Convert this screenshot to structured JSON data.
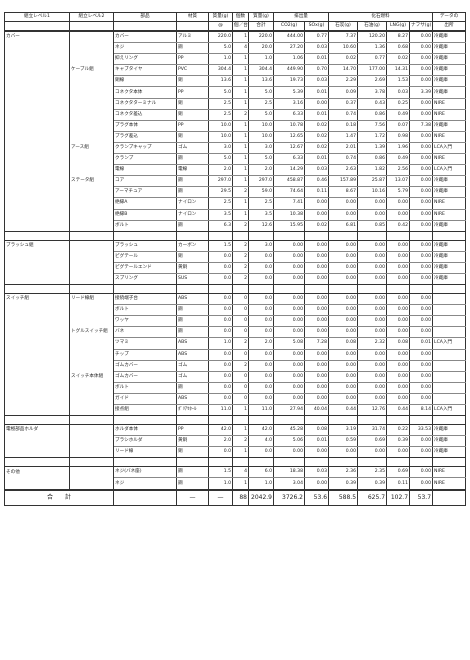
{
  "headers": {
    "level1": "組立レベル1",
    "level2": "組立レベル2",
    "part": "部品",
    "material": "材質",
    "mass_unit": "質量(g)",
    "count": "個数",
    "mass_total": "質量(g)",
    "emissions": "排出量",
    "fossil": "化石燃料",
    "source": "データの",
    "mass_unit_sub": "@",
    "count_sub": "個／台",
    "mass_total_sub": "合計",
    "co2": "CO2(g)",
    "sox": "SOx(g)",
    "coal": "石炭(g)",
    "oil": "石油(g)",
    "lng": "LNG(g)",
    "naphtha": "ナフサ(g)",
    "source_sub": "出所"
  },
  "rows": [
    {
      "l1": "カバー",
      "l2": "",
      "part": "カバー",
      "mat": "アルミ",
      "m": "220.0",
      "n": "1",
      "t": "220.0",
      "co2": "444.00",
      "sox": "0.77",
      "coal": "7.37",
      "oil": "120.20",
      "lng": "8.27",
      "nap": "0.00",
      "src": "冷蔵庫"
    },
    {
      "l1": "",
      "l2": "",
      "part": "ネジ",
      "mat": "鋼",
      "m": "5.0",
      "n": "4",
      "t": "20.0",
      "co2": "27.20",
      "sox": "0.03",
      "coal": "10.60",
      "oil": "1.36",
      "lng": "0.68",
      "nap": "0.00",
      "src": "冷蔵庫"
    },
    {
      "l1": "",
      "l2": "",
      "part": "抑えリング",
      "mat": "PP",
      "m": "1.0",
      "n": "1",
      "t": "1.0",
      "co2": "1.06",
      "sox": "0.01",
      "coal": "0.02",
      "oil": "0.77",
      "lng": "0.02",
      "nap": "0.00",
      "src": "冷蔵庫"
    },
    {
      "l1": "",
      "l2": "ケーブル組",
      "part": "キャブタイヤ",
      "mat": "PVC",
      "m": "304.4",
      "n": "1",
      "t": "304.4",
      "co2": "449.90",
      "sox": "0.70",
      "coal": "14.70",
      "oil": "177.00",
      "lng": "14.31",
      "nap": "0.00",
      "src": "冷蔵庫"
    },
    {
      "l1": "",
      "l2": "",
      "part": "銅線",
      "mat": "銅",
      "m": "13.6",
      "n": "1",
      "t": "13.6",
      "co2": "19.73",
      "sox": "0.03",
      "coal": "2.29",
      "oil": "2.69",
      "lng": "1.53",
      "nap": "0.00",
      "src": "冷蔵庫"
    },
    {
      "l1": "",
      "l2": "",
      "part": "コネクタ本体",
      "mat": "PP",
      "m": "5.0",
      "n": "1",
      "t": "5.0",
      "co2": "5.39",
      "sox": "0.01",
      "coal": "0.09",
      "oil": "3.78",
      "lng": "0.03",
      "nap": "3.39",
      "src": "冷蔵庫"
    },
    {
      "l1": "",
      "l2": "",
      "part": "コネクタターミナル",
      "mat": "銅",
      "m": "2.5",
      "n": "1",
      "t": "2.5",
      "co2": "3.16",
      "sox": "0.00",
      "coal": "0.37",
      "oil": "0.43",
      "lng": "0.25",
      "nap": "0.00",
      "src": "NIRE"
    },
    {
      "l1": "",
      "l2": "",
      "part": "コネクタ差込",
      "mat": "銅",
      "m": "2.5",
      "n": "2",
      "t": "5.0",
      "co2": "6.33",
      "sox": "0.01",
      "coal": "0.74",
      "oil": "0.86",
      "lng": "0.49",
      "nap": "0.00",
      "src": "NIRE"
    },
    {
      "l1": "",
      "l2": "",
      "part": "プラグ本体",
      "mat": "PP",
      "m": "10.0",
      "n": "1",
      "t": "10.0",
      "co2": "10.78",
      "sox": "0.02",
      "coal": "0.18",
      "oil": "7.56",
      "lng": "0.07",
      "nap": "7.38",
      "src": "冷蔵庫"
    },
    {
      "l1": "",
      "l2": "",
      "part": "プラグ差込",
      "mat": "銅",
      "m": "10.0",
      "n": "1",
      "t": "10.0",
      "co2": "12.65",
      "sox": "0.02",
      "coal": "1.47",
      "oil": "1.72",
      "lng": "0.98",
      "nap": "0.00",
      "src": "NIRE"
    },
    {
      "l1": "",
      "l2": "アース組",
      "part": "クランプキャップ",
      "mat": "ゴム",
      "m": "3.0",
      "n": "1",
      "t": "3.0",
      "co2": "12.67",
      "sox": "0.02",
      "coal": "2.01",
      "oil": "1.39",
      "lng": "1.96",
      "nap": "0.00",
      "src": "LCA入門"
    },
    {
      "l1": "",
      "l2": "",
      "part": "クランプ",
      "mat": "鋼",
      "m": "5.0",
      "n": "1",
      "t": "5.0",
      "co2": "6.33",
      "sox": "0.01",
      "coal": "0.74",
      "oil": "0.86",
      "lng": "0.49",
      "nap": "0.00",
      "src": "NIRE"
    },
    {
      "l1": "",
      "l2": "",
      "part": "電線",
      "mat": "電線",
      "m": "2.0",
      "n": "1",
      "t": "2.0",
      "co2": "14.29",
      "sox": "0.03",
      "coal": "2.63",
      "oil": "1.82",
      "lng": "2.56",
      "nap": "0.00",
      "src": "LCA入門"
    },
    {
      "l1": "",
      "l2": "ステータ組",
      "part": "コア",
      "mat": "鋼",
      "m": "297.0",
      "n": "1",
      "t": "297.0",
      "co2": "458.87",
      "sox": "0.46",
      "coal": "157.89",
      "oil": "25.87",
      "lng": "13.07",
      "nap": "0.00",
      "src": "冷蔵庫"
    },
    {
      "l1": "",
      "l2": "",
      "part": "アーマチュア",
      "mat": "鋼",
      "m": "29.5",
      "n": "2",
      "t": "59.0",
      "co2": "74.64",
      "sox": "0.11",
      "coal": "8.67",
      "oil": "10.16",
      "lng": "5.79",
      "nap": "0.00",
      "src": "冷蔵庫"
    },
    {
      "l1": "",
      "l2": "",
      "part": "絶縁A",
      "mat": "ナイロン",
      "m": "2.5",
      "n": "1",
      "t": "2.5",
      "co2": "7.41",
      "sox": "0.00",
      "coal": "0.00",
      "oil": "0.00",
      "lng": "0.00",
      "nap": "0.00",
      "src": "NIRE"
    },
    {
      "l1": "",
      "l2": "",
      "part": "絶縁B",
      "mat": "ナイロン",
      "m": "3.5",
      "n": "1",
      "t": "3.5",
      "co2": "10.38",
      "sox": "0.00",
      "coal": "0.00",
      "oil": "0.00",
      "lng": "0.00",
      "nap": "0.00",
      "src": "NIRE"
    },
    {
      "l1": "",
      "l2": "",
      "part": "ボルト",
      "mat": "鋼",
      "m": "6.3",
      "n": "2",
      "t": "12.6",
      "co2": "15.95",
      "sox": "0.02",
      "coal": "6.81",
      "oil": "0.85",
      "lng": "0.42",
      "nap": "0.00",
      "src": "冷蔵庫",
      "end": true
    },
    {
      "gap": true
    },
    {
      "l1": "ブラッシュ組",
      "l2": "",
      "part": "ブラッシュ",
      "mat": "カーボン",
      "m": "1.5",
      "n": "2",
      "t": "3.0",
      "co2": "0.00",
      "sox": "0.00",
      "coal": "0.00",
      "oil": "0.00",
      "lng": "0.00",
      "nap": "0.00",
      "src": "冷蔵庫"
    },
    {
      "l1": "",
      "l2": "",
      "part": "ピグテール",
      "mat": "銅",
      "m": "0.0",
      "n": "2",
      "t": "0.0",
      "co2": "0.00",
      "sox": "0.00",
      "coal": "0.00",
      "oil": "0.00",
      "lng": "0.00",
      "nap": "0.00",
      "src": "冷蔵庫"
    },
    {
      "l1": "",
      "l2": "",
      "part": "ピグテールエンド",
      "mat": "黄銅",
      "m": "0.0",
      "n": "2",
      "t": "0.0",
      "co2": "0.00",
      "sox": "0.00",
      "coal": "0.00",
      "oil": "0.00",
      "lng": "0.00",
      "nap": "0.00",
      "src": "冷蔵庫"
    },
    {
      "l1": "",
      "l2": "",
      "part": "スプリング",
      "mat": "SUS",
      "m": "0.0",
      "n": "2",
      "t": "0.0",
      "co2": "0.00",
      "sox": "0.00",
      "coal": "0.00",
      "oil": "0.00",
      "lng": "0.00",
      "nap": "0.00",
      "src": "冷蔵庫",
      "end": true
    },
    {
      "gap": true
    },
    {
      "l1": "スイッチ組",
      "l2": "リード線組",
      "part": "接続端子台",
      "mat": "ABS",
      "m": "0.0",
      "n": "0",
      "t": "0.0",
      "co2": "0.00",
      "sox": "0.00",
      "coal": "0.00",
      "oil": "0.00",
      "lng": "0.00",
      "nap": "0.00",
      "src": ""
    },
    {
      "l1": "",
      "l2": "",
      "part": "ボルト",
      "mat": "鋼",
      "m": "0.0",
      "n": "0",
      "t": "0.0",
      "co2": "0.00",
      "sox": "0.00",
      "coal": "0.00",
      "oil": "0.00",
      "lng": "0.00",
      "nap": "0.00",
      "src": ""
    },
    {
      "l1": "",
      "l2": "",
      "part": "ワッヤ",
      "mat": "鋼",
      "m": "0.0",
      "n": "0",
      "t": "0.0",
      "co2": "0.00",
      "sox": "0.00",
      "coal": "0.00",
      "oil": "0.00",
      "lng": "0.00",
      "nap": "0.00",
      "src": ""
    },
    {
      "l1": "",
      "l2": "トグルスイッチ組",
      "part": "バネ",
      "mat": "鋼",
      "m": "0.0",
      "n": "0",
      "t": "0.0",
      "co2": "0.00",
      "sox": "0.00",
      "coal": "0.00",
      "oil": "0.00",
      "lng": "0.00",
      "nap": "0.00",
      "src": ""
    },
    {
      "l1": "",
      "l2": "",
      "part": "ツマミ",
      "mat": "ABS",
      "m": "1.0",
      "n": "2",
      "t": "2.0",
      "co2": "5.08",
      "sox": "7.28",
      "coal": "0.08",
      "oil": "2.32",
      "lng": "0.08",
      "nap": "0.01",
      "src": "LCA入門"
    },
    {
      "l1": "",
      "l2": "",
      "part": "チップ",
      "mat": "ABS",
      "m": "0.0",
      "n": "0",
      "t": "0.0",
      "co2": "0.00",
      "sox": "0.00",
      "coal": "0.00",
      "oil": "0.00",
      "lng": "0.00",
      "nap": "0.00",
      "src": ""
    },
    {
      "l1": "",
      "l2": "",
      "part": "ゴムカバー",
      "mat": "ゴム",
      "m": "0.0",
      "n": "2",
      "t": "0.0",
      "co2": "0.00",
      "sox": "0.00",
      "coal": "0.00",
      "oil": "0.00",
      "lng": "0.00",
      "nap": "0.00",
      "src": ""
    },
    {
      "l1": "",
      "l2": "スイッチ本体組",
      "part": "ゴムカバー",
      "mat": "ゴム",
      "m": "0.0",
      "n": "0",
      "t": "0.0",
      "co2": "0.00",
      "sox": "0.00",
      "coal": "0.00",
      "oil": "0.00",
      "lng": "0.00",
      "nap": "0.00",
      "src": ""
    },
    {
      "l1": "",
      "l2": "",
      "part": "ボルト",
      "mat": "鋼",
      "m": "0.0",
      "n": "0",
      "t": "0.0",
      "co2": "0.00",
      "sox": "0.00",
      "coal": "0.00",
      "oil": "0.00",
      "lng": "0.00",
      "nap": "0.00",
      "src": ""
    },
    {
      "l1": "",
      "l2": "",
      "part": "ガイド",
      "mat": "ABS",
      "m": "0.0",
      "n": "0",
      "t": "0.0",
      "co2": "0.00",
      "sox": "0.00",
      "coal": "0.00",
      "oil": "0.00",
      "lng": "0.00",
      "nap": "0.00",
      "src": ""
    },
    {
      "l1": "",
      "l2": "",
      "part": "接点組",
      "mat": "ﾎﾟﾘｱｾﾀｰﾙ",
      "m": "11.0",
      "n": "1",
      "t": "11.0",
      "co2": "27.94",
      "sox": "40.04",
      "coal": "0.44",
      "oil": "12.76",
      "lng": "0.44",
      "nap": "8.14",
      "src": "LCA入門",
      "end": true
    },
    {
      "gap": true
    },
    {
      "l1": "電極部品ホルダ",
      "l2": "",
      "part": "ホルダ本体",
      "mat": "PP",
      "m": "42.0",
      "n": "1",
      "t": "42.0",
      "co2": "45.28",
      "sox": "0.08",
      "coal": "3.19",
      "oil": "31.74",
      "lng": "0.22",
      "nap": "33.53",
      "src": "冷蔵庫"
    },
    {
      "l1": "",
      "l2": "",
      "part": "ブラシホルダ",
      "mat": "黄銅",
      "m": "2.0",
      "n": "2",
      "t": "4.0",
      "co2": "5.06",
      "sox": "0.01",
      "coal": "0.59",
      "oil": "0.69",
      "lng": "0.39",
      "nap": "0.00",
      "src": "冷蔵庫"
    },
    {
      "l1": "",
      "l2": "",
      "part": "リード線",
      "mat": "銅",
      "m": "0.0",
      "n": "1",
      "t": "0.0",
      "co2": "0.00",
      "sox": "0.00",
      "coal": "0.00",
      "oil": "0.00",
      "lng": "0.00",
      "nap": "0.00",
      "src": "冷蔵庫",
      "end": true
    },
    {
      "gap": true
    },
    {
      "l1": "その他",
      "l2": "",
      "part": "ネジ(バネ座)",
      "mat": "鋼",
      "m": "1.5",
      "n": "4",
      "t": "6.0",
      "co2": "18.38",
      "sox": "0.03",
      "coal": "2.36",
      "oil": "2.35",
      "lng": "0.69",
      "nap": "0.00",
      "src": "NIRE"
    },
    {
      "l1": "",
      "l2": "",
      "part": "ネジ",
      "mat": "鋼",
      "m": "1.0",
      "n": "1",
      "t": "1.0",
      "co2": "3.04",
      "sox": "0.00",
      "coal": "0.39",
      "oil": "0.39",
      "lng": "0.11",
      "nap": "0.00",
      "src": "NIRE",
      "end": true
    }
  ],
  "total": {
    "label": "合　　計",
    "dash": "—",
    "dash2": "—",
    "count": "88",
    "mass": "2042.9",
    "co2": "3726.2",
    "sox": "53.6",
    "coal": "588.5",
    "oil": "625.7",
    "lng": "102.7",
    "nap": "53.7"
  }
}
